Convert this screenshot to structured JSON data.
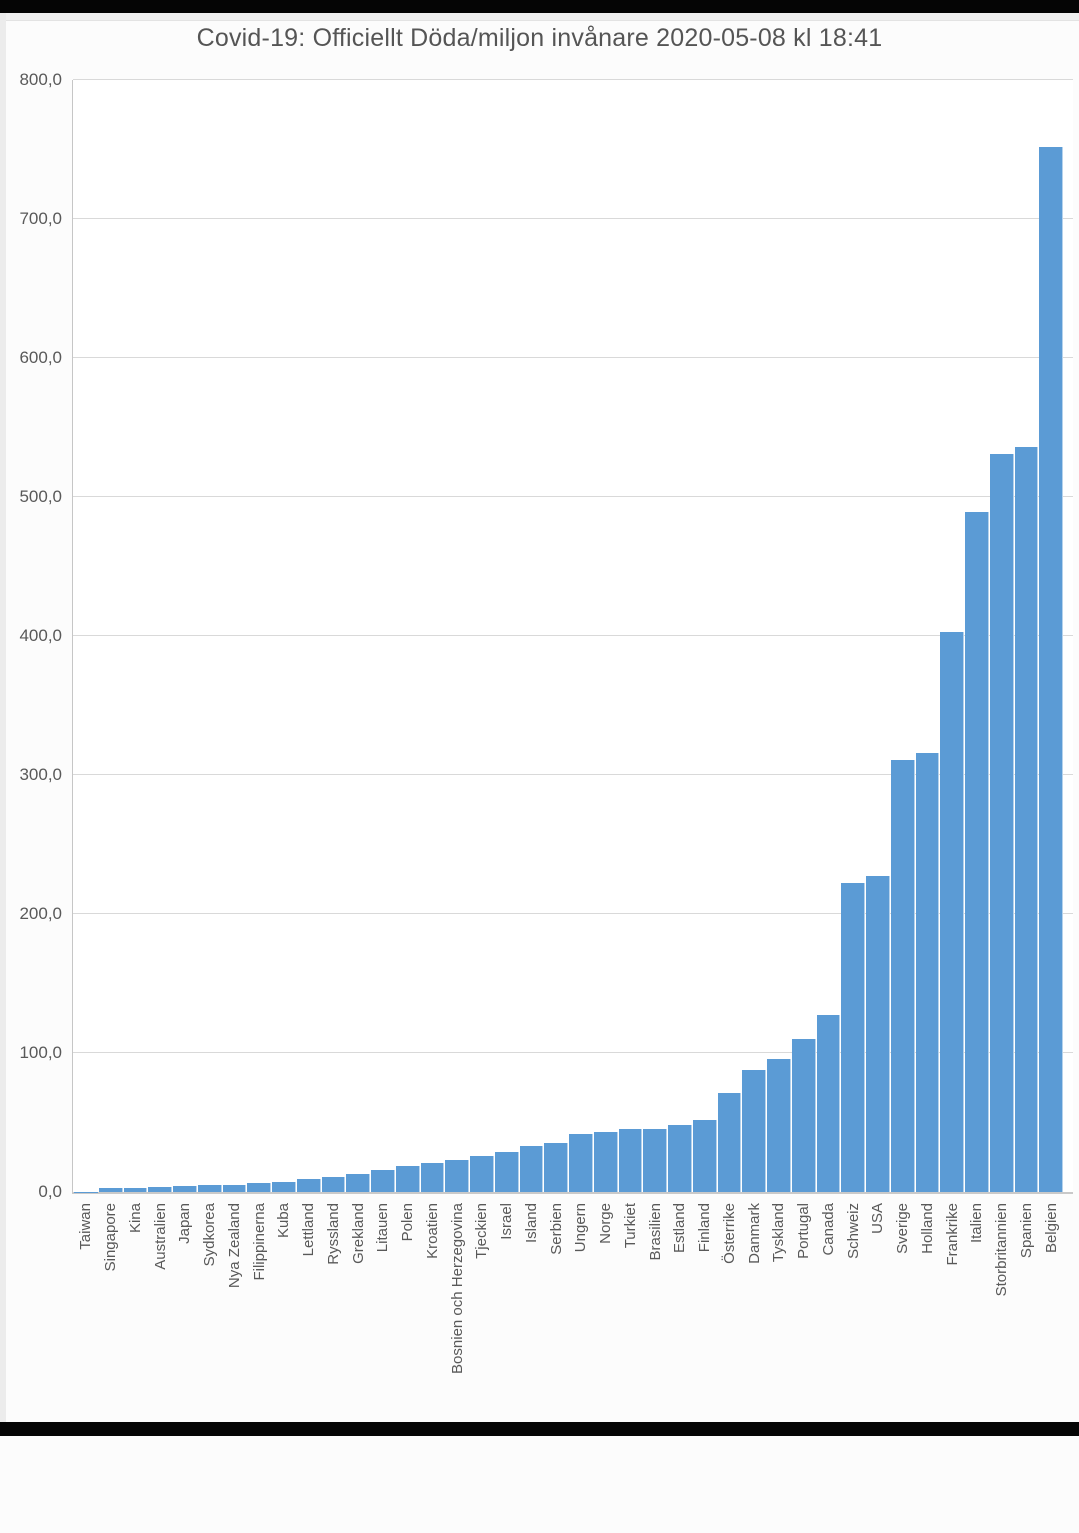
{
  "title_bar": {
    "top_bar_color": "#050505",
    "bottom_bar_color": "#050505"
  },
  "chart_data": {
    "type": "bar",
    "title": "Covid-19: Officiellt Döda/miljon invånare 2020-05-08 kl 18:41",
    "categories": [
      "Taiwan",
      "Singapore",
      "Kina",
      "Australien",
      "Japan",
      "Sydkorea",
      "Nya Zealand",
      "Filippinerna",
      "Kuba",
      "Lettland",
      "Ryssland",
      "Grekland",
      "Litauen",
      "Polen",
      "Kroatien",
      "Bosnien och Herzegovina",
      "Tjeckien",
      "Israel",
      "Island",
      "Serbien",
      "Ungern",
      "Norge",
      "Turkiet",
      "Brasilien",
      "Estland",
      "Finland",
      "Österrike",
      "Danmark",
      "Tyskland",
      "Portugal",
      "Canada",
      "Schweiz",
      "USA",
      "Sverige",
      "Holland",
      "Frankrike",
      "Italien",
      "Storbritannien",
      "Spanien",
      "Belgien"
    ],
    "values": [
      0.3,
      3.1,
      3.2,
      3.8,
      4.4,
      5.0,
      5.3,
      6.2,
      6.9,
      9.4,
      11.0,
      13.0,
      16.0,
      19.0,
      21.0,
      23.0,
      26.0,
      29.0,
      33.0,
      35.0,
      42.0,
      43.0,
      45.0,
      45.5,
      48.0,
      52.0,
      71.0,
      88.0,
      96.0,
      110.0,
      127.0,
      222.0,
      227.0,
      311.0,
      316.0,
      403.0,
      489.0,
      531.0,
      536.0,
      752.0
    ],
    "xlabel": "",
    "ylabel": "",
    "ylim": [
      0,
      800
    ],
    "y_ticks": [
      {
        "value": 0,
        "label": "0,0"
      },
      {
        "value": 100,
        "label": "100,0"
      },
      {
        "value": 200,
        "label": "200,0"
      },
      {
        "value": 300,
        "label": "300,0"
      },
      {
        "value": 400,
        "label": "400,0"
      },
      {
        "value": 500,
        "label": "500,0"
      },
      {
        "value": 600,
        "label": "600,0"
      },
      {
        "value": 700,
        "label": "700,0"
      },
      {
        "value": 800,
        "label": "800,0"
      }
    ],
    "grid": true,
    "legend": "none",
    "bar_color": "#5b9bd5",
    "gridline_color": "#d9d9d9",
    "axis_color": "#c6c6c6",
    "tick_label_color": "#595959",
    "title_color": "#555555"
  }
}
